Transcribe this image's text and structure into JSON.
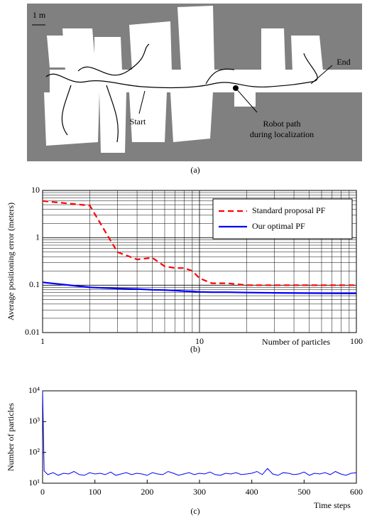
{
  "map": {
    "scale_label": "1 m",
    "start": "Start",
    "end": "End",
    "path_label_1": "Robot path",
    "path_label_2": "during localization",
    "caption": "(a)"
  },
  "chart_data": [
    {
      "type": "line",
      "caption": "(b)",
      "xlabel": "Number of particles",
      "ylabel": "Average positioning error (meters)",
      "xscale": "log",
      "yscale": "log",
      "grid": true,
      "minor_grid": true,
      "legend": "upper right",
      "xlim": [
        1,
        100
      ],
      "ylim": [
        0.01,
        10
      ],
      "xticks": [
        1,
        10,
        100
      ],
      "yticks": [
        0.01,
        0.1,
        1,
        10
      ],
      "x": [
        1,
        2,
        3,
        4,
        5,
        6,
        7,
        8,
        9,
        10,
        12,
        15,
        20,
        30,
        50,
        100
      ],
      "series": [
        {
          "name": "Standard proposal PF",
          "color": "#ff0000",
          "linestyle": "dashed",
          "values": [
            6,
            4.8,
            0.5,
            0.35,
            0.38,
            0.25,
            0.23,
            0.23,
            0.2,
            0.14,
            0.11,
            0.11,
            0.1,
            0.1,
            0.1,
            0.1
          ]
        },
        {
          "name": "Our optimal PF",
          "color": "#0000ff",
          "linestyle": "solid",
          "values": [
            0.115,
            0.09,
            0.085,
            0.083,
            0.08,
            0.079,
            0.077,
            0.075,
            0.074,
            0.072,
            0.071,
            0.071,
            0.07,
            0.069,
            0.068,
            0.067
          ]
        }
      ]
    },
    {
      "type": "line",
      "caption": "(c)",
      "xlabel": "Time steps",
      "ylabel": "Number of particles",
      "xscale": "linear",
      "yscale": "log",
      "grid": false,
      "xlim": [
        0,
        600
      ],
      "ylim": [
        10,
        10000
      ],
      "xticks": [
        0,
        100,
        200,
        300,
        400,
        500,
        600
      ],
      "yticks": [
        {
          "value": 10,
          "label": "10¹"
        },
        {
          "value": 100,
          "label": "10²"
        },
        {
          "value": 1000,
          "label": "10³"
        },
        {
          "value": 10000,
          "label": "10⁴"
        }
      ],
      "x": [
        0,
        3,
        10,
        20,
        30,
        40,
        50,
        60,
        70,
        80,
        90,
        100,
        110,
        120,
        130,
        140,
        150,
        160,
        170,
        180,
        190,
        200,
        210,
        220,
        230,
        240,
        250,
        260,
        270,
        280,
        290,
        300,
        310,
        320,
        330,
        340,
        350,
        360,
        370,
        380,
        390,
        400,
        410,
        420,
        430,
        440,
        450,
        460,
        470,
        480,
        490,
        500,
        510,
        520,
        530,
        540,
        550,
        560,
        570,
        580,
        590,
        600
      ],
      "series": [
        {
          "name": null,
          "color": "#0000ff",
          "linestyle": "solid",
          "values": [
            10000,
            25,
            19,
            22,
            18,
            21,
            20,
            24,
            19,
            18,
            22,
            20,
            21,
            19,
            23,
            18,
            20,
            22,
            19,
            21,
            20,
            18,
            22,
            20,
            19,
            24,
            21,
            18,
            20,
            22,
            19,
            21,
            20,
            23,
            19,
            18,
            21,
            20,
            22,
            19,
            20,
            21,
            24,
            19,
            30,
            20,
            18,
            22,
            21,
            19,
            20,
            23,
            18,
            21,
            20,
            22,
            19,
            24,
            20,
            18,
            21,
            22
          ]
        }
      ]
    }
  ]
}
